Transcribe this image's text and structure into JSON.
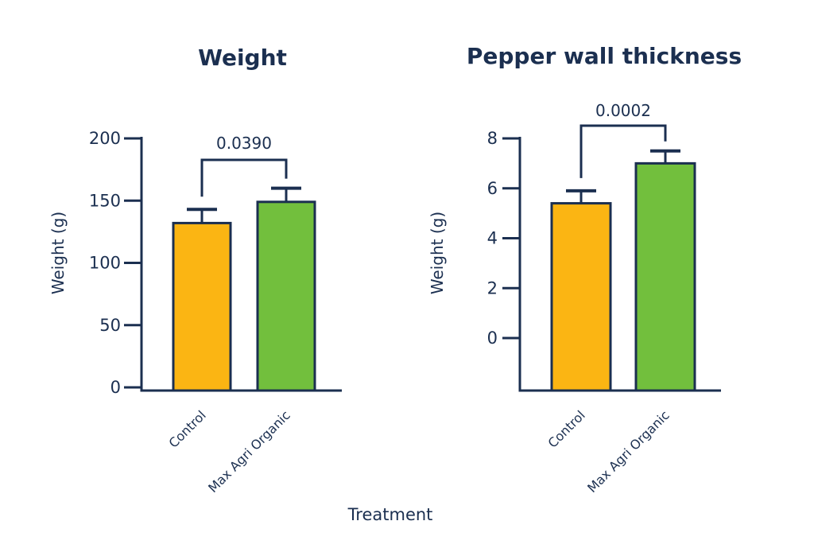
{
  "x_axis_label": "Treatment",
  "colors": {
    "ink": "#1b2f50",
    "control": "#fbb513",
    "treated": "#72bf3d"
  },
  "chart_data": [
    {
      "type": "bar",
      "title": "Weight",
      "ylabel": "Weight (g)",
      "categories": [
        "Control",
        "Max Agri Organic"
      ],
      "values": [
        132,
        149
      ],
      "errors": [
        11,
        11
      ],
      "ylim": [
        0,
        200
      ],
      "yticks": [
        0,
        50,
        100,
        150,
        200
      ],
      "bar_colors": [
        "#fbb513",
        "#72bf3d"
      ],
      "significance": {
        "between": [
          0,
          1
        ],
        "label": "0.0390"
      }
    },
    {
      "type": "bar",
      "title": "Pepper wall thickness",
      "ylabel": "Weight (g)",
      "categories": [
        "Control",
        "Max Agri Organic"
      ],
      "values": [
        5.4,
        7.0
      ],
      "errors": [
        0.5,
        0.5
      ],
      "ylim": [
        -2,
        8
      ],
      "yticks": [
        0,
        2,
        4,
        6,
        8
      ],
      "bar_colors": [
        "#fbb513",
        "#72bf3d"
      ],
      "significance": {
        "between": [
          0,
          1
        ],
        "label": "0.0002"
      }
    }
  ]
}
